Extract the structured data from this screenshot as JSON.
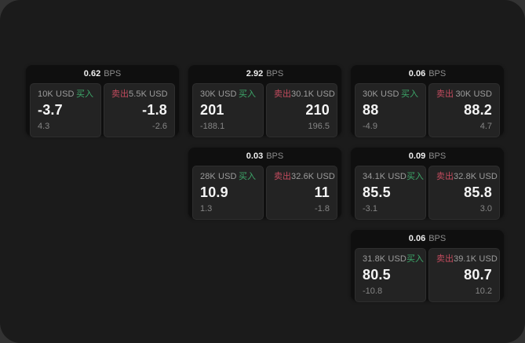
{
  "labels": {
    "bps_unit": "BPS",
    "buy": "买入",
    "sell": "卖出"
  },
  "colors": {
    "buy_green": "#3da86a",
    "sell_red": "#c24b5e",
    "window_bg": "#1b1b1b",
    "card_bg": "#0f0f0f",
    "panel_bg": "#232323"
  },
  "cards": [
    {
      "bps": "0.62",
      "buy": {
        "amount": "10K USD",
        "price": "-3.7",
        "change": "4.3"
      },
      "sell": {
        "amount": "5.5K USD",
        "price": "-1.8",
        "change": "-2.6"
      }
    },
    {
      "bps": "2.92",
      "buy": {
        "amount": "30K USD",
        "price": "201",
        "change": "-188.1"
      },
      "sell": {
        "amount": "30.1K USD",
        "price": "210",
        "change": "196.5"
      }
    },
    {
      "bps": "0.06",
      "buy": {
        "amount": "30K USD",
        "price": "88",
        "change": "-4.9"
      },
      "sell": {
        "amount": "30K USD",
        "price": "88.2",
        "change": "4.7"
      }
    },
    {
      "bps": "0.03",
      "buy": {
        "amount": "28K USD",
        "price": "10.9",
        "change": "1.3"
      },
      "sell": {
        "amount": "32.6K USD",
        "price": "11",
        "change": "-1.8"
      }
    },
    {
      "bps": "0.09",
      "buy": {
        "amount": "34.1K USD",
        "price": "85.5",
        "change": "-3.1"
      },
      "sell": {
        "amount": "32.8K USD",
        "price": "85.8",
        "change": "3.0"
      }
    },
    {
      "bps": "0.06",
      "buy": {
        "amount": "31.8K USD",
        "price": "80.5",
        "change": "-10.8"
      },
      "sell": {
        "amount": "39.1K USD",
        "price": "80.7",
        "change": "10.2"
      }
    }
  ]
}
